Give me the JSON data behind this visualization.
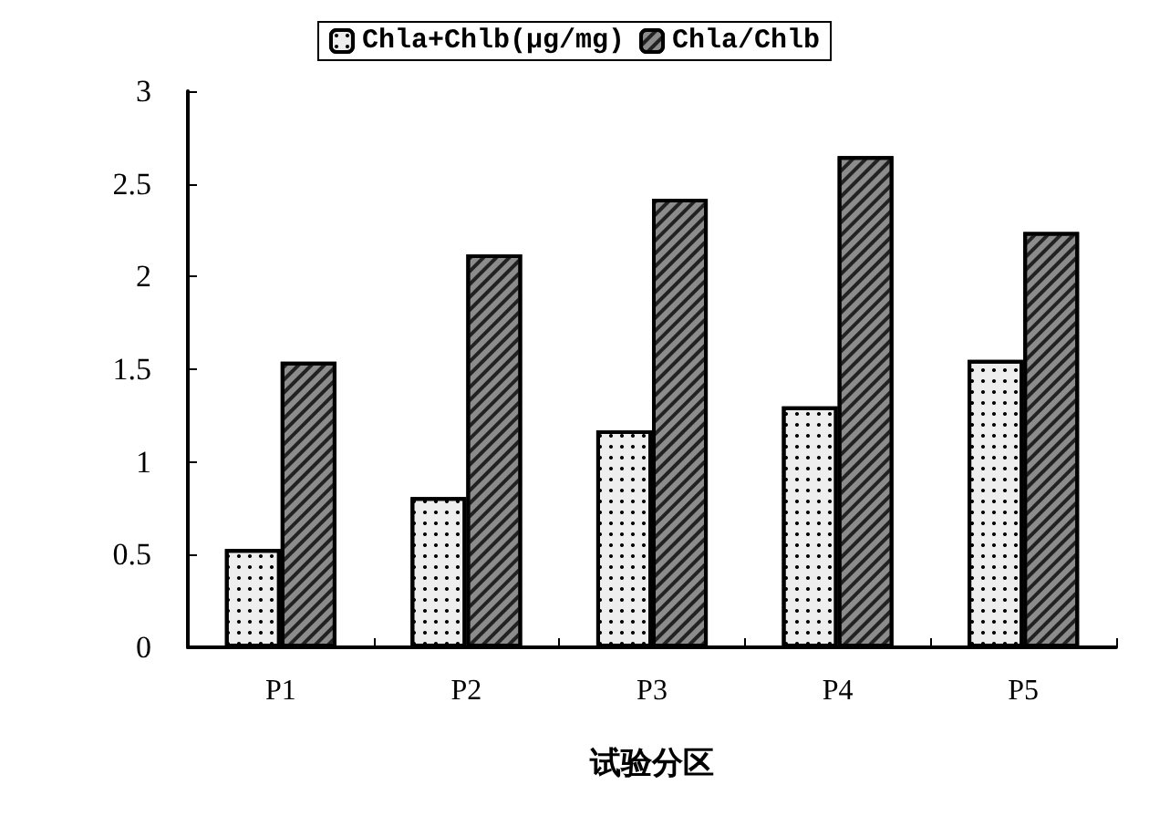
{
  "chart_data": {
    "type": "bar",
    "xlabel": "试验分区",
    "categories": [
      "P1",
      "P2",
      "P3",
      "P4",
      "P5"
    ],
    "series": [
      {
        "name": "Chla+Chlb(μg/mg)",
        "color": "#eeeeee",
        "values": [
          0.53,
          0.81,
          1.17,
          1.3,
          1.55
        ]
      },
      {
        "name": "Chla/Chlb",
        "color": "#8c8c8c",
        "values": [
          1.54,
          2.12,
          2.42,
          2.65,
          2.24
        ]
      }
    ],
    "ylim": [
      0,
      3
    ],
    "yticks": [
      0,
      0.5,
      1,
      1.5,
      2,
      2.5,
      3
    ],
    "grid": false,
    "legend": "top"
  }
}
